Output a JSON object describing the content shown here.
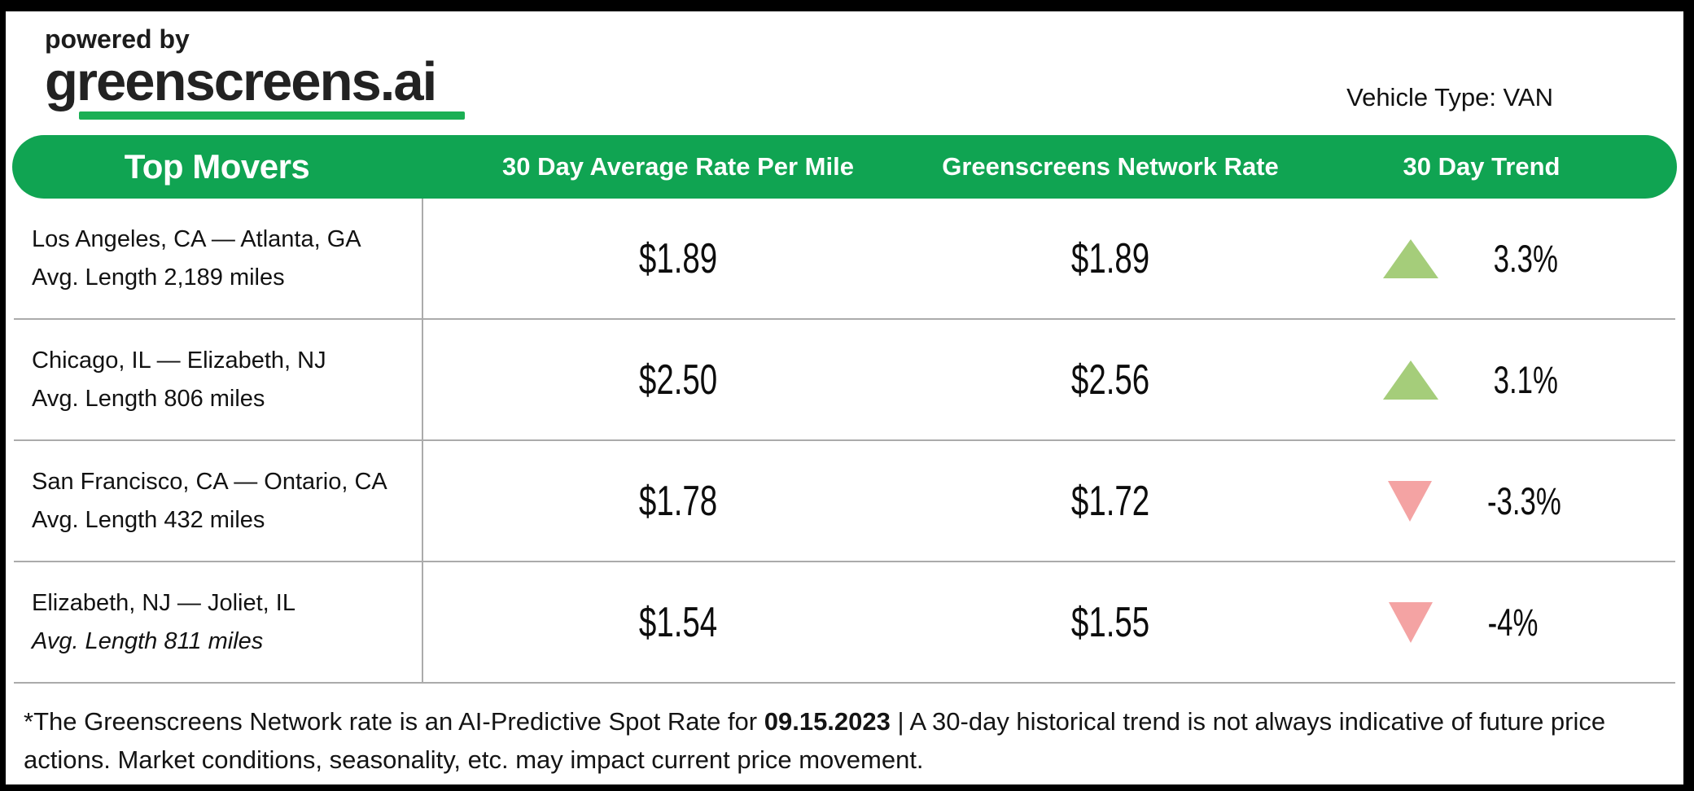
{
  "branding": {
    "powered_by": "powered by",
    "logo_text": "greenscreens.ai"
  },
  "header": {
    "vehicle_type": "Vehicle Type: VAN"
  },
  "table": {
    "columns": [
      "Top Movers",
      "30 Day Average Rate Per Mile",
      "Greenscreens Network Rate",
      "30 Day Trend"
    ],
    "rows": [
      {
        "lane": "Los Angeles, CA — Atlanta, GA",
        "avg_length": "Avg. Length 2,189 miles",
        "avg_length_italic": false,
        "avg_rate": "$1.89",
        "network_rate": "$1.89",
        "trend_direction": "up",
        "trend_value": "3.3%"
      },
      {
        "lane": "Chicago, IL — Elizabeth, NJ",
        "avg_length": "Avg. Length 806 miles",
        "avg_length_italic": false,
        "avg_rate": "$2.50",
        "network_rate": "$2.56",
        "trend_direction": "up",
        "trend_value": "3.1%"
      },
      {
        "lane": "San Francisco, CA — Ontario, CA",
        "avg_length": "Avg. Length 432 miles",
        "avg_length_italic": false,
        "avg_rate": "$1.78",
        "network_rate": "$1.72",
        "trend_direction": "down",
        "trend_value": "-3.3%"
      },
      {
        "lane": "Elizabeth, NJ — Joliet, IL",
        "avg_length": "Avg. Length 811 miles",
        "avg_length_italic": true,
        "avg_rate": "$1.54",
        "network_rate": "$1.55",
        "trend_direction": "down",
        "trend_value": "-4%"
      }
    ]
  },
  "footnote": {
    "prefix": "*The Greenscreens Network rate is an AI-Predictive Spot Rate for ",
    "date": "09.15.2023",
    "suffix": " | A 30-day historical trend is not always indicative of future price actions. Market conditions, seasonality, etc. may impact current price movement."
  },
  "colors": {
    "brand_green": "#10A452",
    "underline_green": "#1BAF54",
    "trend_up": "#A5CD7A",
    "trend_down": "#F4A3A3",
    "divider_gray": "#ABABAB",
    "frame_black": "#000000"
  }
}
